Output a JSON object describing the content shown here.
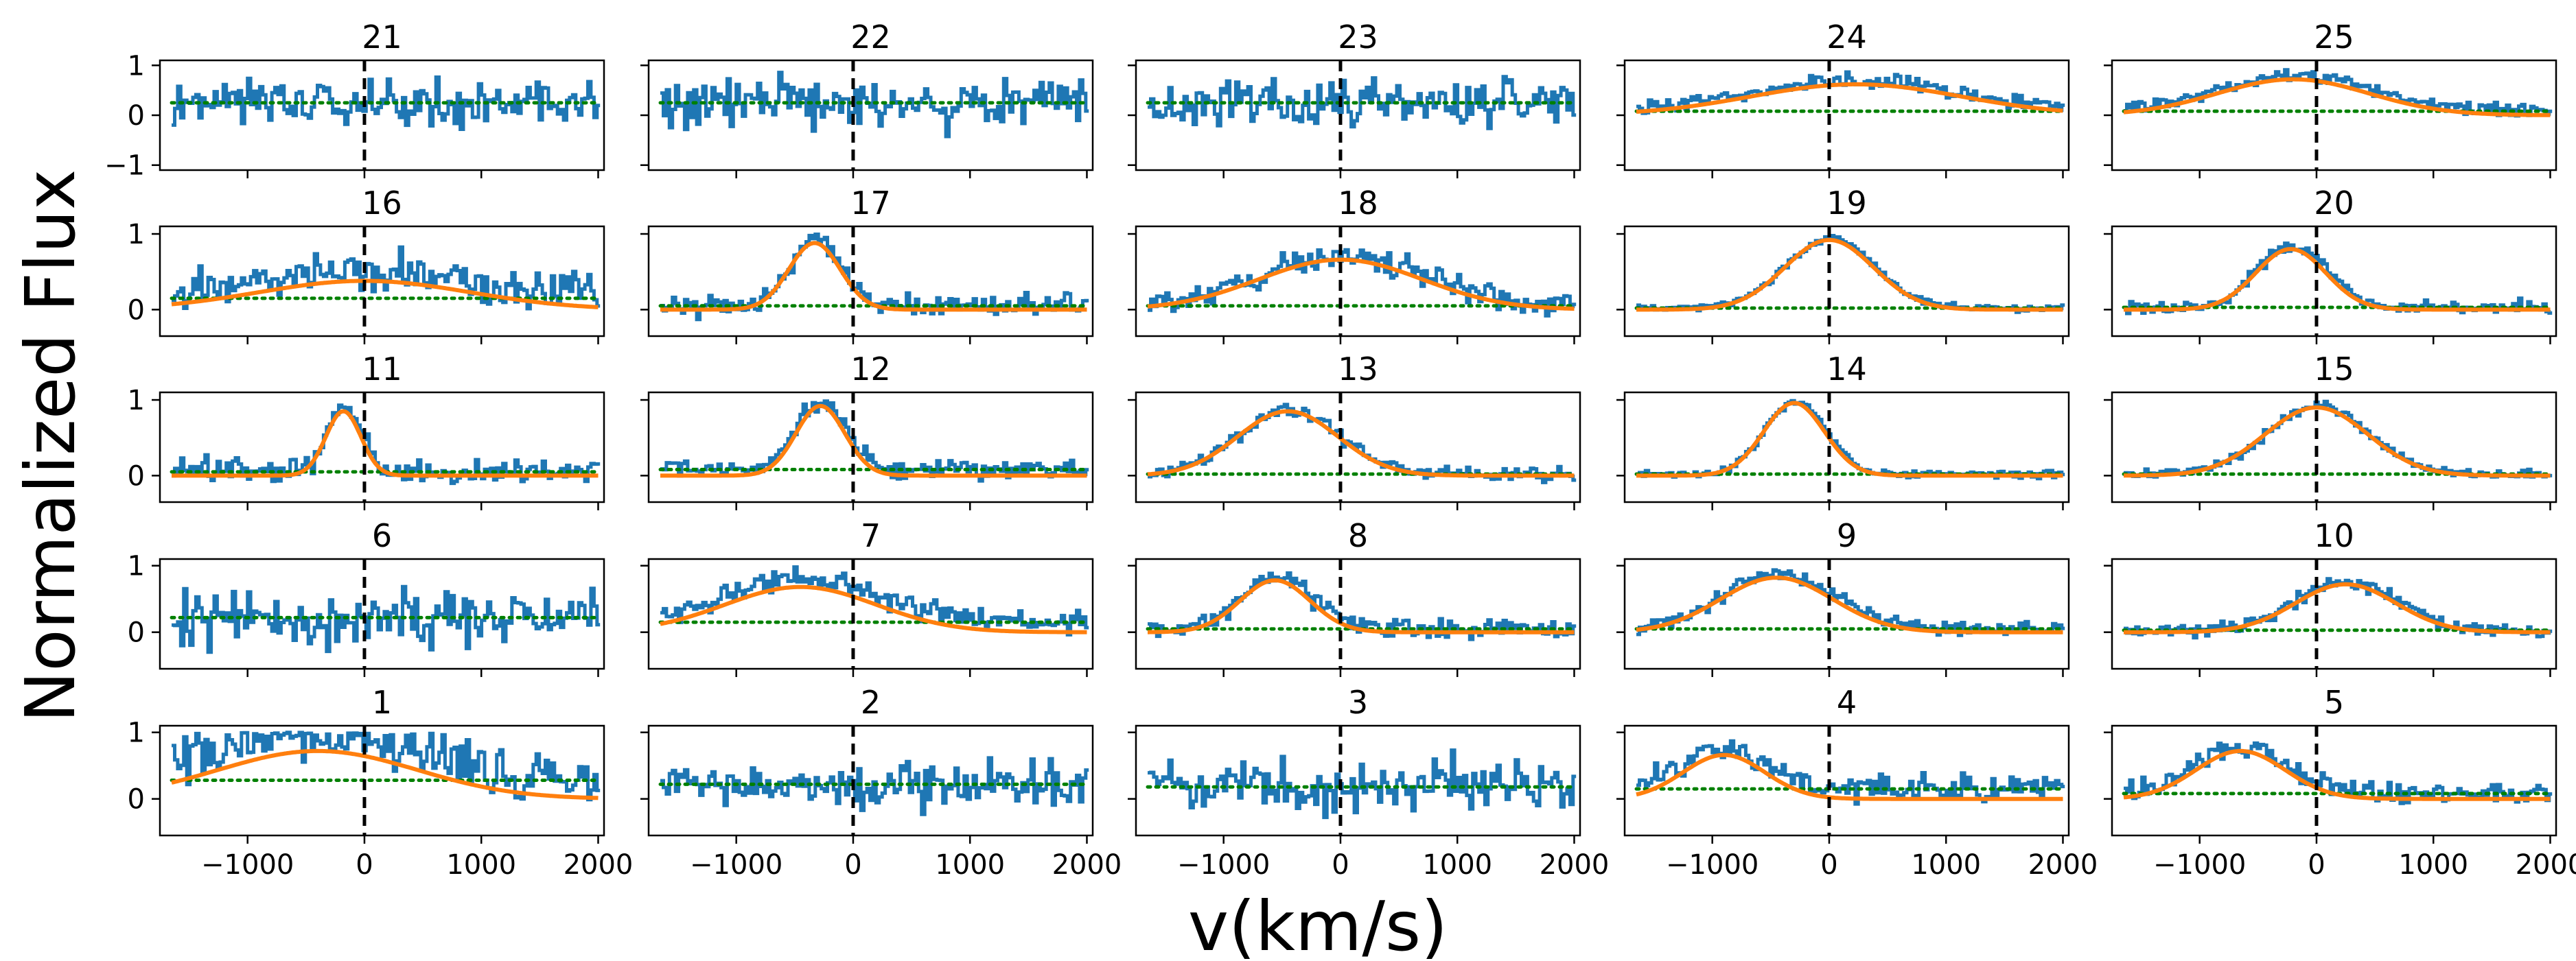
{
  "figure": {
    "ylabel": "Normalized Flux",
    "xlabel": "v(km/s)"
  },
  "colors": {
    "spectrum": "#1f77b4",
    "fit": "#ff7f0e",
    "continuum": "#008000",
    "zero_line": "#000000"
  },
  "chart_data": {
    "type": "line",
    "layout": "5x5 grid of small-multiple spectra panels (shared x and y axes)",
    "shared_x": {
      "ticks": [
        -1000,
        0,
        1000,
        2000
      ],
      "tick_labels": [
        "−1000",
        "0",
        "1000",
        "2000"
      ],
      "range": [
        -1750,
        2050
      ]
    },
    "shared_y": {
      "ticks": [
        -1,
        0,
        1
      ],
      "tick_labels": [
        "−1",
        "0",
        "1"
      ],
      "range": [
        -1.1,
        1.1
      ]
    },
    "series_styles": {
      "spectrum": "steps, blue solid",
      "fit": "smooth, orange solid (Gaussian)",
      "continuum": "green dotted",
      "zero_velocity": "black dashed vertical line at v = 0"
    },
    "panels": [
      {
        "title": "21",
        "ylim": [
          -1.1,
          1.1
        ],
        "ytick_labels": [
          "−1",
          "0",
          "1"
        ],
        "continuum": 0.25,
        "fit": null,
        "noise": 0.38,
        "seed": 21
      },
      {
        "title": "22",
        "ylim": [
          -1.1,
          1.1
        ],
        "ytick_labels": [],
        "continuum": 0.25,
        "fit": null,
        "noise": 0.4,
        "seed": 22
      },
      {
        "title": "23",
        "ylim": [
          -1.1,
          1.1
        ],
        "ytick_labels": [],
        "continuum": 0.25,
        "fit": null,
        "noise": 0.36,
        "seed": 23
      },
      {
        "title": "24",
        "ylim": [
          -1.1,
          1.1
        ],
        "ytick_labels": [],
        "continuum": 0.08,
        "fit": {
          "amp": 0.62,
          "center": 230,
          "sigma": 900
        },
        "noise": 0.12,
        "seed": 24
      },
      {
        "title": "25",
        "ylim": [
          -1.1,
          1.1
        ],
        "ytick_labels": [],
        "continuum": 0.08,
        "fit": {
          "amp": 0.72,
          "center": -200,
          "sigma": 650
        },
        "noise": 0.1,
        "seed": 25
      },
      {
        "title": "16",
        "ylim": [
          -0.35,
          1.1
        ],
        "ytick_labels": [
          "0",
          "1"
        ],
        "continuum": 0.15,
        "fit": {
          "amp": 0.38,
          "center": 0,
          "sigma": 900
        },
        "noise": 0.22,
        "seed": 16
      },
      {
        "title": "17",
        "ylim": [
          -0.35,
          1.1
        ],
        "ytick_labels": [],
        "continuum": 0.05,
        "fit": {
          "amp": 0.88,
          "center": -330,
          "sigma": 220
        },
        "noise": 0.12,
        "seed": 17
      },
      {
        "title": "18",
        "ylim": [
          -0.35,
          1.1
        ],
        "ytick_labels": [],
        "continuum": 0.05,
        "fit": {
          "amp": 0.66,
          "center": 0,
          "sigma": 700
        },
        "noise": 0.14,
        "seed": 18
      },
      {
        "title": "19",
        "ylim": [
          -0.35,
          1.1
        ],
        "ytick_labels": [],
        "continuum": 0.02,
        "fit": {
          "amp": 0.92,
          "center": 0,
          "sigma": 380
        },
        "noise": 0.04,
        "seed": 19
      },
      {
        "title": "20",
        "ylim": [
          -0.35,
          1.1
        ],
        "ytick_labels": [],
        "continuum": 0.03,
        "fit": {
          "amp": 0.8,
          "center": -220,
          "sigma": 300
        },
        "noise": 0.07,
        "seed": 20
      },
      {
        "title": "11",
        "ylim": [
          -0.35,
          1.1
        ],
        "ytick_labels": [
          "0",
          "1"
        ],
        "continuum": 0.05,
        "fit": {
          "amp": 0.85,
          "center": -180,
          "sigma": 150
        },
        "noise": 0.14,
        "seed": 11
      },
      {
        "title": "12",
        "ylim": [
          -0.35,
          1.1
        ],
        "ytick_labels": [],
        "continuum": 0.08,
        "fit": {
          "amp": 0.92,
          "center": -280,
          "sigma": 210
        },
        "noise": 0.1,
        "seed": 12
      },
      {
        "title": "13",
        "ylim": [
          -0.35,
          1.1
        ],
        "ytick_labels": [],
        "continuum": 0.02,
        "fit": {
          "amp": 0.85,
          "center": -450,
          "sigma": 430
        },
        "noise": 0.08,
        "seed": 13
      },
      {
        "title": "14",
        "ylim": [
          -0.35,
          1.1
        ],
        "ytick_labels": [],
        "continuum": 0.02,
        "fit": {
          "amp": 0.96,
          "center": -300,
          "sigma": 260
        },
        "noise": 0.04,
        "seed": 14
      },
      {
        "title": "15",
        "ylim": [
          -0.35,
          1.1
        ],
        "ytick_labels": [],
        "continuum": 0.02,
        "fit": {
          "amp": 0.9,
          "center": 0,
          "sigma": 440
        },
        "noise": 0.06,
        "seed": 15
      },
      {
        "title": "6",
        "ylim": [
          -0.55,
          1.1
        ],
        "ytick_labels": [
          "0",
          "1"
        ],
        "continuum": 0.22,
        "fit": null,
        "noise": 0.34,
        "seed": 6
      },
      {
        "title": "7",
        "ylim": [
          -0.55,
          1.1
        ],
        "ytick_labels": [],
        "continuum": 0.15,
        "fit": {
          "amp": 0.68,
          "center": -450,
          "sigma": 650
        },
        "noise": 0.14,
        "seed": 7
      },
      {
        "title": "8",
        "ylim": [
          -0.55,
          1.1
        ],
        "ytick_labels": [],
        "continuum": 0.05,
        "fit": {
          "amp": 0.78,
          "center": -560,
          "sigma": 300
        },
        "noise": 0.12,
        "seed": 8
      },
      {
        "title": "9",
        "ylim": [
          -0.55,
          1.1
        ],
        "ytick_labels": [],
        "continuum": 0.05,
        "fit": {
          "amp": 0.82,
          "center": -450,
          "sigma": 480
        },
        "noise": 0.09,
        "seed": 9
      },
      {
        "title": "10",
        "ylim": [
          -0.55,
          1.1
        ],
        "ytick_labels": [],
        "continuum": 0.03,
        "fit": {
          "amp": 0.72,
          "center": 250,
          "sigma": 430
        },
        "noise": 0.08,
        "seed": 10
      },
      {
        "title": "1",
        "ylim": [
          -0.55,
          1.1
        ],
        "ytick_labels": [
          "0",
          "1"
        ],
        "continuum": 0.28,
        "fit": {
          "amp": 0.72,
          "center": -400,
          "sigma": 850
        },
        "noise": 0.3,
        "seed": 1
      },
      {
        "title": "2",
        "ylim": [
          -0.55,
          1.1
        ],
        "ytick_labels": [],
        "continuum": 0.22,
        "fit": null,
        "noise": 0.28,
        "seed": 2
      },
      {
        "title": "3",
        "ylim": [
          -0.55,
          1.1
        ],
        "ytick_labels": [],
        "continuum": 0.18,
        "fit": null,
        "noise": 0.32,
        "seed": 3
      },
      {
        "title": "4",
        "ylim": [
          -0.55,
          1.1
        ],
        "ytick_labels": [],
        "continuum": 0.15,
        "fit": {
          "amp": 0.66,
          "center": -900,
          "sigma": 350
        },
        "noise": 0.16,
        "seed": 4
      },
      {
        "title": "5",
        "ylim": [
          -0.55,
          1.1
        ],
        "ytick_labels": [],
        "continuum": 0.08,
        "fit": {
          "amp": 0.72,
          "center": -650,
          "sigma": 380
        },
        "noise": 0.14,
        "seed": 5
      }
    ]
  }
}
